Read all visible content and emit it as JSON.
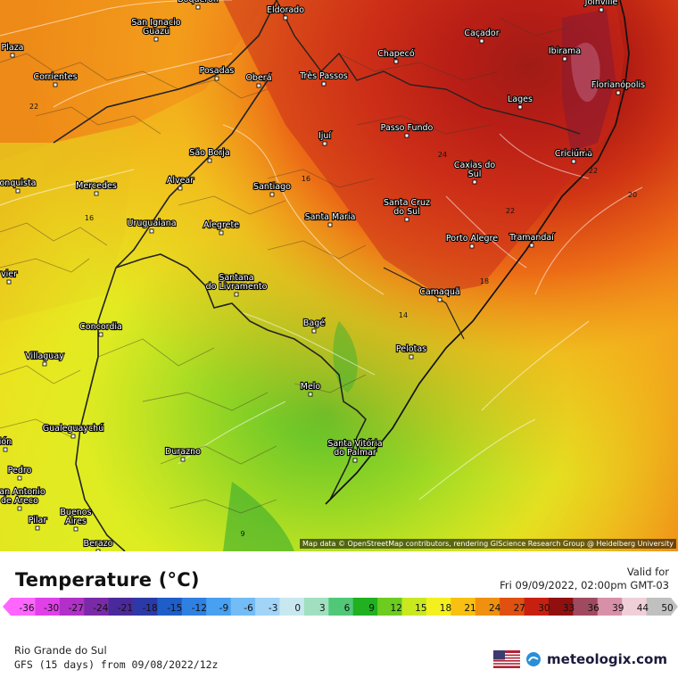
{
  "map": {
    "attribution": "Map data © OpenStreetMap contributors, rendering GIScience Research Group @ Heidelberg University",
    "cities": [
      {
        "name": "Boqueron"
      },
      {
        "name": "Eldorado"
      },
      {
        "name": "Joinville"
      },
      {
        "name": "San Ignacio\nGuazú"
      },
      {
        "name": "Caçador"
      },
      {
        "name": "Chapecó"
      },
      {
        "name": "Ibirama"
      },
      {
        "name": "Posadas"
      },
      {
        "name": "Oberá"
      },
      {
        "name": "Três Passos"
      },
      {
        "name": "Florianópolis"
      },
      {
        "name": "Corrientes"
      },
      {
        "name": "Lages"
      },
      {
        "name": "Passo Fundo"
      },
      {
        "name": "Ijuí"
      },
      {
        "name": "São Borja"
      },
      {
        "name": "Criciúma"
      },
      {
        "name": "Alvear"
      },
      {
        "name": "Mercedes"
      },
      {
        "name": "Santiago"
      },
      {
        "name": "Caxias do\nSul"
      },
      {
        "name": "Santa Cruz\ndo Sul"
      },
      {
        "name": "Santa Maria"
      },
      {
        "name": "Uruguaiana"
      },
      {
        "name": "Alegrete"
      },
      {
        "name": "Porto Alegre"
      },
      {
        "name": "Tramandaí"
      },
      {
        "name": "Santana\ndo Livramento"
      },
      {
        "name": "Camaquã"
      },
      {
        "name": "Concordia"
      },
      {
        "name": "Bagé"
      },
      {
        "name": "Villaguay"
      },
      {
        "name": "Pelotas"
      },
      {
        "name": "Melo"
      },
      {
        "name": "Gualeguaychú"
      },
      {
        "name": "Durazno"
      },
      {
        "name": "Santa Vitória\ndo Palmar"
      },
      {
        "name": "Pedro"
      },
      {
        "name": "San Antonio\nde Areco"
      },
      {
        "name": "Pilar"
      },
      {
        "name": "Buenos\nAires"
      },
      {
        "name": "Berazo"
      },
      {
        "name": "Plaza"
      },
      {
        "name": "onquista"
      },
      {
        "name": "vier"
      },
      {
        "name": "ión"
      }
    ],
    "isolines": [
      {
        "value": "22"
      },
      {
        "value": "16"
      },
      {
        "value": "16"
      },
      {
        "value": "24"
      },
      {
        "value": "22"
      },
      {
        "value": "20"
      },
      {
        "value": "22"
      },
      {
        "value": "18"
      },
      {
        "value": "14"
      },
      {
        "value": "15"
      },
      {
        "value": "9"
      }
    ]
  },
  "legend": {
    "title": "Temperature (°C)",
    "valid_label": "Valid for",
    "valid_time": "Fri 09/09/2022, 02:00pm GMT-03",
    "ticks": [
      "-36",
      "-30",
      "-27",
      "-24",
      "-21",
      "-18",
      "-15",
      "-12",
      "-9",
      "-6",
      "-3",
      "0",
      "3",
      "6",
      "9",
      "12",
      "15",
      "18",
      "21",
      "24",
      "27",
      "30",
      "33",
      "36",
      "39",
      "44",
      "50"
    ],
    "colors": [
      "#ff66ff",
      "#e040e8",
      "#b030c8",
      "#7a2aa8",
      "#4a2a9a",
      "#2c3aa8",
      "#1f5ec8",
      "#2f80e0",
      "#48a0f0",
      "#73bcf5",
      "#a2d4f8",
      "#c8e8f0",
      "#a0e0c0",
      "#50c878",
      "#20b020",
      "#6ccc20",
      "#c8e820",
      "#f4f020",
      "#f8c010",
      "#f09010",
      "#e05010",
      "#c82010",
      "#901010",
      "#a04a60",
      "#d890a8",
      "#f0d0d8",
      "#c0c0c0"
    ]
  },
  "footer": {
    "region": "Rio Grande do Sul",
    "model": "GFS (15 days) from 09/08/2022/12z",
    "brand": "meteologix.com"
  }
}
